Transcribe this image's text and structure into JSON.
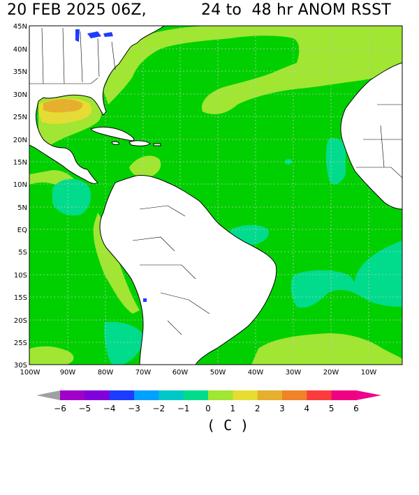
{
  "title": {
    "date": "20 FEB 2025 06Z,",
    "range": "24 to  48 hr ANOM RSST"
  },
  "map": {
    "lat_labels": [
      "45N",
      "40N",
      "35N",
      "30N",
      "25N",
      "20N",
      "15N",
      "10N",
      "5N",
      "EQ",
      "5S",
      "10S",
      "15S",
      "20S",
      "25S",
      "30S"
    ],
    "lon_labels": [
      "100W",
      "90W",
      "80W",
      "70W",
      "60W",
      "50W",
      "40W",
      "30W",
      "20W",
      "10W"
    ],
    "colors": {
      "land": "#ffffff",
      "anom_0_1": "#00d000",
      "anom_1_2": "#a0e632",
      "anom_2_3": "#e6dc32",
      "anom_3_4": "#e6af2d",
      "anom_-1_0": "#00dc8c",
      "grid": "#c8c8c8",
      "lakes": "#1e3cff"
    }
  },
  "colorbar": {
    "labels": [
      "−6",
      "−5",
      "−4",
      "−3",
      "−2",
      "−1",
      "0",
      "1",
      "2",
      "3",
      "4",
      "5",
      "6"
    ],
    "colors": [
      "#a000c8",
      "#8200dc",
      "#1e3cff",
      "#00a0ff",
      "#00c8c8",
      "#00dc8c",
      "#00d000",
      "#a0e632",
      "#e6dc32",
      "#e6af2d",
      "#f08228",
      "#fa3c3c",
      "#f00082"
    ],
    "low_arrow_color": "#a0a0a0",
    "high_arrow_color": "#f0008c",
    "unit": "( C )"
  }
}
